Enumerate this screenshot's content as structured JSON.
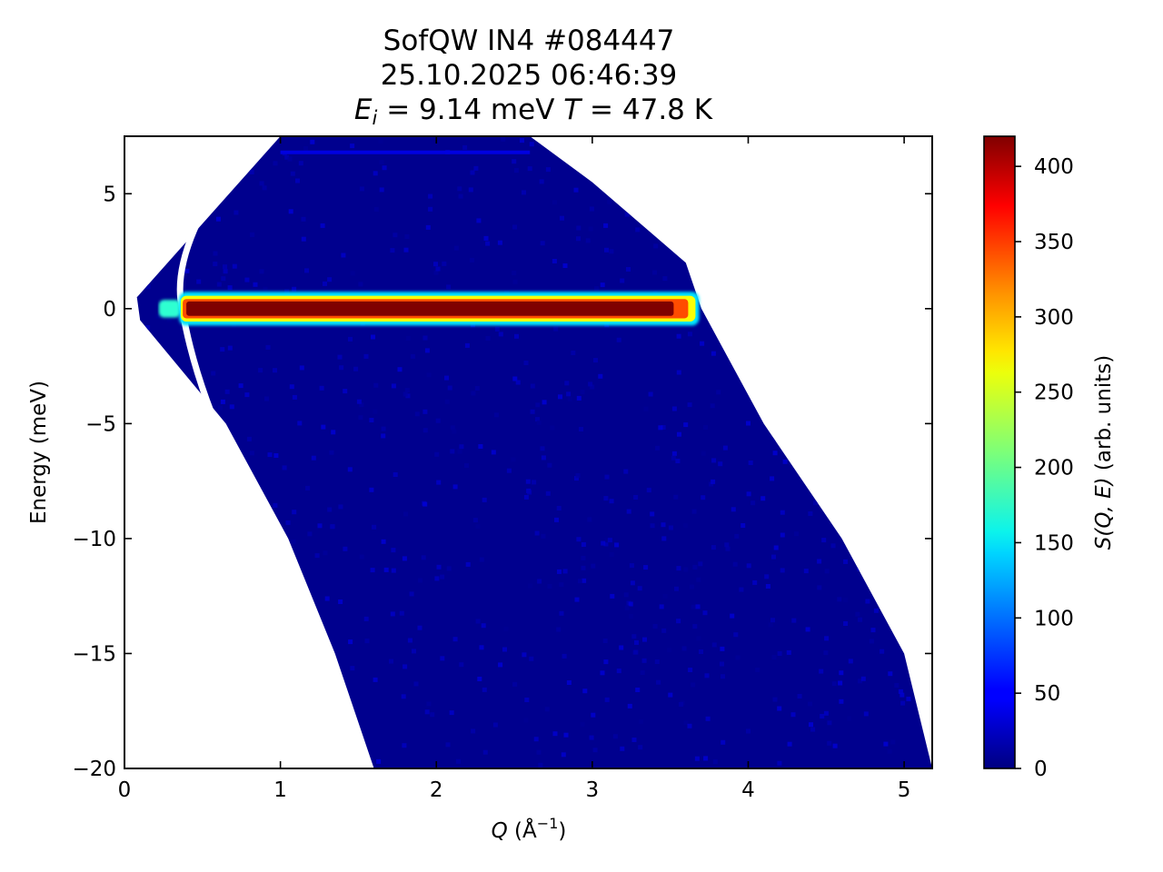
{
  "chart_data": {
    "type": "heatmap",
    "title_lines": [
      "SofQW IN4 #084447",
      "25.10.2025 06:46:39"
    ],
    "title_line3": {
      "ei_symbol": "E",
      "ei_sub": "i",
      "ei_value": " = 9.14 meV ",
      "t_symbol": "T",
      "t_value": " = 47.8 K"
    },
    "xlabel": {
      "symbol": "Q",
      "unit_prefix": " (Å",
      "unit_exp": "−1",
      "unit_suffix": ")"
    },
    "ylabel": "Energy (meV)",
    "colorbar_label": {
      "prefix": "S",
      "args": "(Q, E)",
      "suffix": " (arb. units)"
    },
    "xlim": [
      0,
      5.18
    ],
    "ylim": [
      -20,
      7.5
    ],
    "x_ticks": [
      0,
      1,
      2,
      3,
      4,
      5
    ],
    "x_tick_labels": [
      "0",
      "1",
      "2",
      "3",
      "4",
      "5"
    ],
    "y_ticks": [
      5,
      0,
      -5,
      -10,
      -15,
      -20
    ],
    "y_tick_labels": [
      "5",
      "0",
      "−5",
      "−10",
      "−15",
      "−20"
    ],
    "colorbar_range": [
      0,
      420
    ],
    "colorbar_ticks": [
      0,
      50,
      100,
      150,
      200,
      250,
      300,
      350,
      400
    ],
    "colorbar_tick_labels": [
      "0",
      "50",
      "100",
      "150",
      "200",
      "250",
      "300",
      "350",
      "400"
    ],
    "colormap": "jet",
    "kinematic_limits": {
      "upper_boundary": [
        [
          0.08,
          0.5
        ],
        [
          1.0,
          7.5
        ],
        [
          2.6,
          7.5
        ],
        [
          3.0,
          5.5
        ],
        [
          3.6,
          2.0
        ],
        [
          3.7,
          0.0
        ],
        [
          4.1,
          -5.0
        ],
        [
          4.6,
          -10.0
        ],
        [
          5.0,
          -15.0
        ],
        [
          5.18,
          -20.0
        ]
      ],
      "lower_boundary": [
        [
          0.08,
          0.5
        ],
        [
          0.1,
          -0.5
        ],
        [
          0.65,
          -5.0
        ],
        [
          1.05,
          -10.0
        ],
        [
          1.35,
          -15.0
        ],
        [
          1.6,
          -20.0
        ]
      ]
    },
    "features": [
      {
        "name": "elastic line",
        "Q_range": [
          0.35,
          3.65
        ],
        "E_center": 0.0,
        "E_halfwidth": 0.35,
        "intensity": 420
      },
      {
        "name": "weak line",
        "Q_range": [
          1.0,
          2.6
        ],
        "E_center": 6.8,
        "intensity": 40
      }
    ],
    "background_intensity": 6,
    "gap_arc": "unmeasured detector gap near Q ≈ 0.4 Å⁻¹",
    "grid": false
  }
}
